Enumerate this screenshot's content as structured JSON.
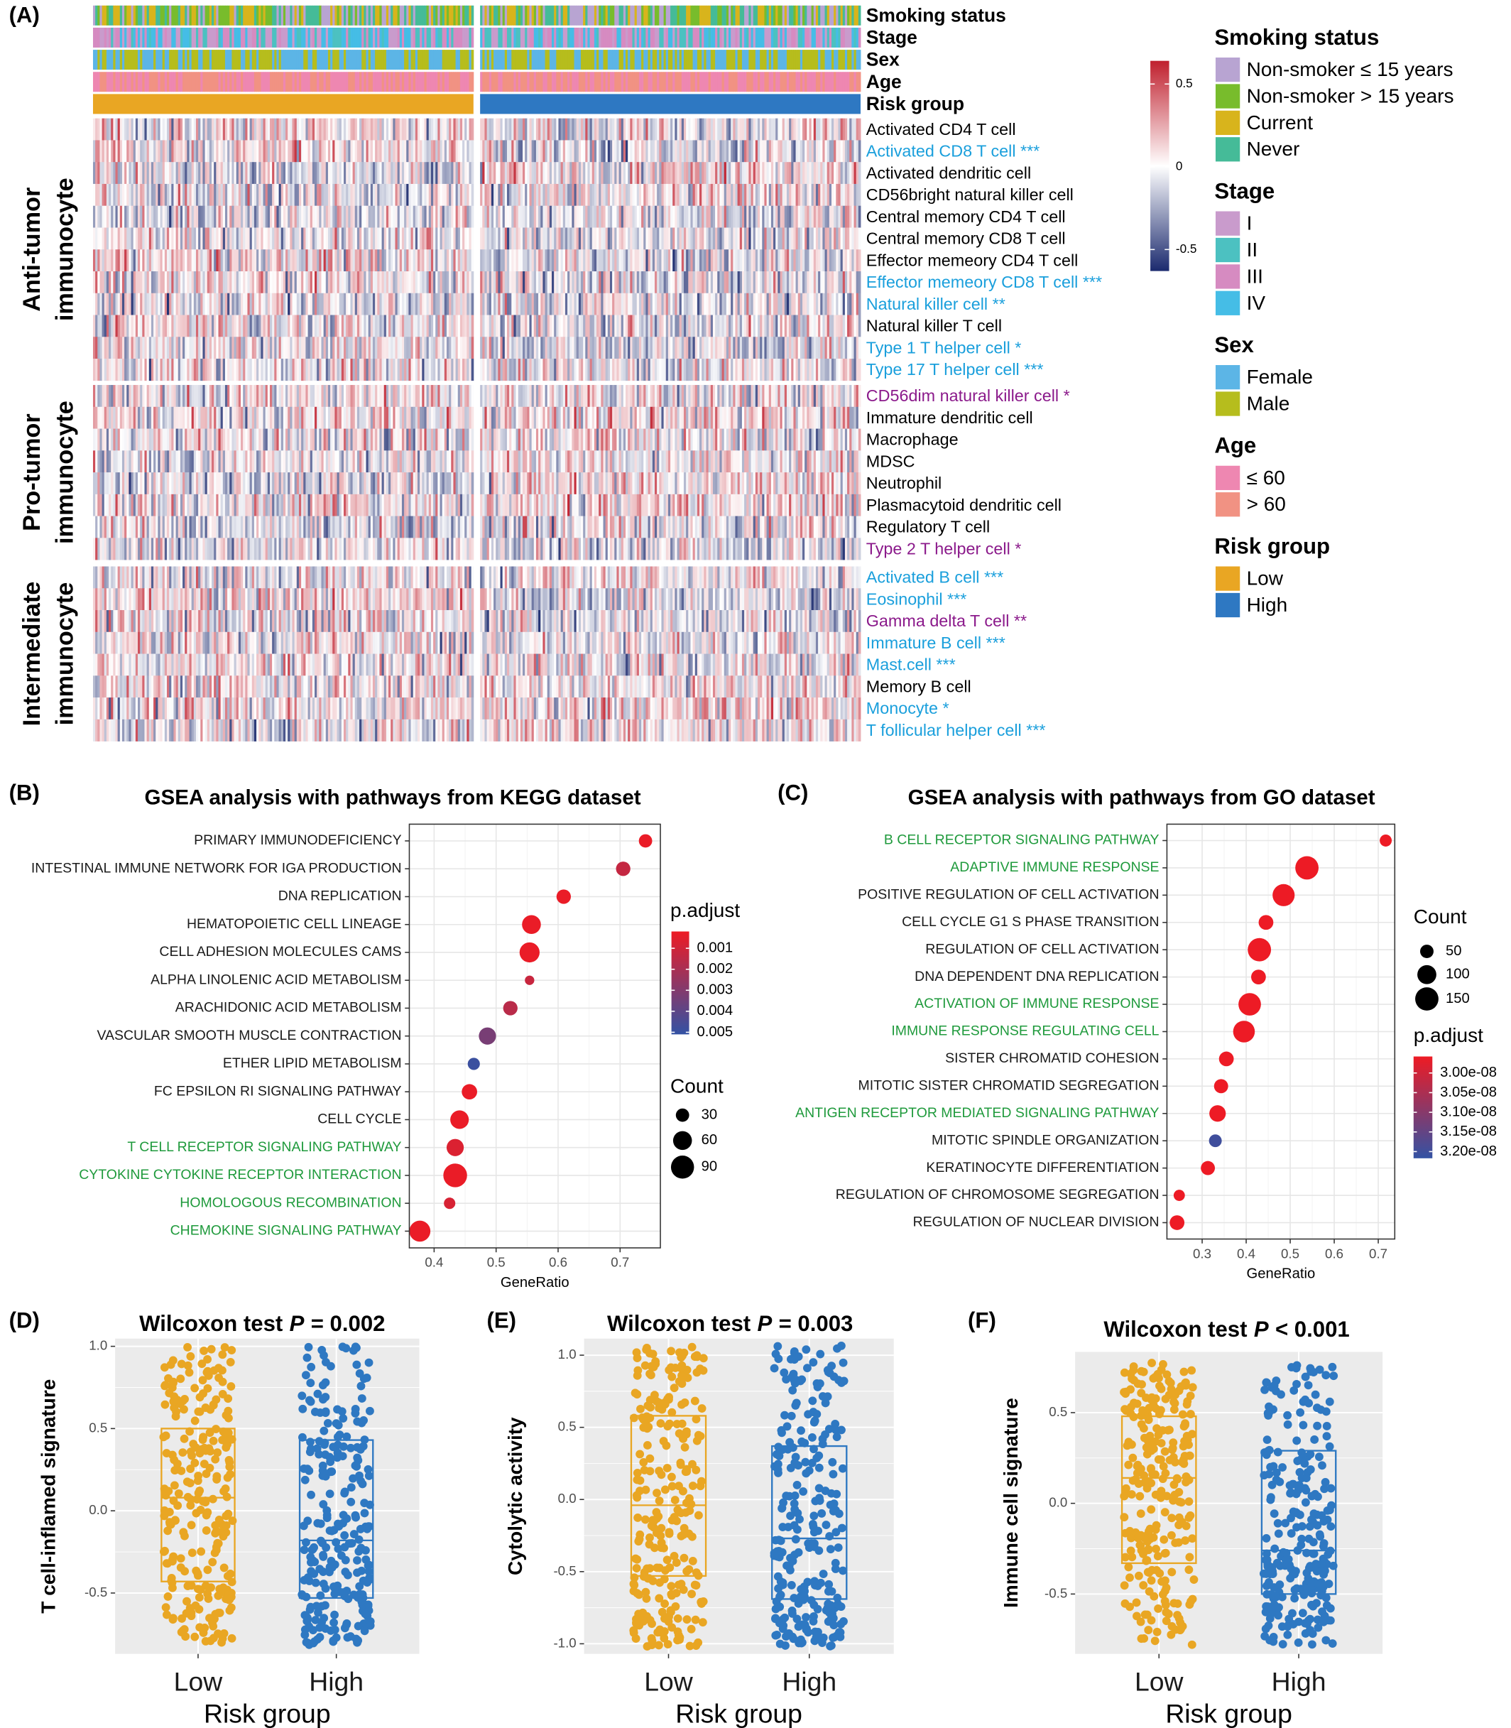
{
  "chart_data": [
    {
      "type": "heatmap",
      "panel": "(A)",
      "tracks": [
        {
          "name": "Smoking status",
          "levels": [
            "Non-smoker ≤ 15 years",
            "Non-smoker > 15 years",
            "Current",
            "Never"
          ],
          "colors": [
            "#b8a4d2",
            "#78bc2c",
            "#d8b41c",
            "#45bb98"
          ]
        },
        {
          "name": "Stage",
          "levels": [
            "I",
            "II",
            "III",
            "IV"
          ],
          "colors": [
            "#c99bcc",
            "#4cc1c1",
            "#d68bc1",
            "#45bde6"
          ]
        },
        {
          "name": "Sex",
          "levels": [
            "Female",
            "Male"
          ],
          "colors": [
            "#5cb5e6",
            "#b6bd1d"
          ]
        },
        {
          "name": "Age",
          "levels": [
            "≤ 60",
            "> 60"
          ],
          "colors": [
            "#ee87b1",
            "#f19283"
          ]
        },
        {
          "name": "Risk group",
          "levels": [
            "Low",
            "High"
          ],
          "colors": [
            "#e9a623",
            "#2e78c2"
          ]
        }
      ],
      "groups": [
        {
          "name": [
            "Anti-tumor",
            "immunocyte"
          ],
          "rows": [
            "Activated CD4 T cell",
            "Activated CD8 T cell ***",
            "Activated dendritic cell",
            "CD56bright natural killer cell",
            "Central memory CD4 T cell",
            "Central memory CD8 T cell",
            "Effector memeory CD4 T cell",
            "Effector memeory CD8 T cell ***",
            "Natural killer cell **",
            "Natural killer T cell",
            "Type 1 T helper cell *",
            "Type 17 T helper cell ***"
          ],
          "row_colors": [
            "#000000",
            "#1a9fdc",
            "#000000",
            "#000000",
            "#000000",
            "#000000",
            "#000000",
            "#1a9fdc",
            "#1a9fdc",
            "#000000",
            "#1a9fdc",
            "#1a9fdc"
          ]
        },
        {
          "name": [
            "Pro-tumor",
            "immunocyte"
          ],
          "rows": [
            "CD56dim natural killer cell *",
            "Immature dendritic cell",
            "Macrophage",
            "MDSC",
            "Neutrophil",
            "Plasmacytoid dendritic cell",
            "Regulatory T cell",
            "Type 2 T helper cell *"
          ],
          "row_colors": [
            "#8b1a8b",
            "#000000",
            "#000000",
            "#000000",
            "#000000",
            "#000000",
            "#000000",
            "#8b1a8b"
          ]
        },
        {
          "name": [
            "Intermediate",
            "immunocyte"
          ],
          "rows": [
            "Activated B cell ***",
            "Eosinophil ***",
            "Gamma delta T cell **",
            "Immature B cell ***",
            "Mast.cell ***",
            "Memory B cell",
            "Monocyte *",
            "T follicular helper cell ***"
          ],
          "row_colors": [
            "#1a9fdc",
            "#1a9fdc",
            "#8b1a8b",
            "#1a9fdc",
            "#1a9fdc",
            "#000000",
            "#1a9fdc",
            "#1a9fdc"
          ]
        }
      ],
      "colorbar": {
        "lim": [
          -0.63,
          0.64
        ],
        "ticks": [
          -0.5,
          0,
          0.5
        ],
        "colors": [
          "#1b2a6e",
          "#ffffff",
          "#c0202e"
        ]
      }
    },
    {
      "type": "dot",
      "panel": "(B)",
      "title": "GSEA analysis with pathways from KEGG dataset",
      "categories": [
        "PRIMARY IMMUNODEFICIENCY",
        "INTESTINAL IMMUNE NETWORK FOR IGA PRODUCTION",
        "DNA REPLICATION",
        "HEMATOPOIETIC CELL LINEAGE",
        "CELL ADHESION MOLECULES CAMS",
        "ALPHA LINOLENIC ACID METABOLISM",
        "ARACHIDONIC ACID METABOLISM",
        "VASCULAR SMOOTH MUSCLE CONTRACTION",
        "ETHER LIPID METABOLISM",
        "FC EPSILON RI SIGNALING PATHWAY",
        "CELL CYCLE",
        "T CELL RECEPTOR SIGNALING PATHWAY",
        "CYTOKINE CYTOKINE RECEPTOR INTERACTION",
        "HOMOLOGOUS RECOMBINATION",
        "CHEMOKINE SIGNALING PATHWAY"
      ],
      "category_colors": [
        "#1a1a1a",
        "#1a1a1a",
        "#1a1a1a",
        "#1a1a1a",
        "#1a1a1a",
        "#1a1a1a",
        "#1a1a1a",
        "#1a1a1a",
        "#1a1a1a",
        "#1a1a1a",
        "#1a1a1a",
        "#1f9a3c",
        "#1f9a3c",
        "#1f9a3c",
        "#1f9a3c"
      ],
      "x": [
        0.741,
        0.705,
        0.609,
        0.557,
        0.554,
        0.554,
        0.523,
        0.486,
        0.464,
        0.457,
        0.441,
        0.434,
        0.434,
        0.425,
        0.377
      ],
      "count": [
        30,
        35,
        35,
        60,
        68,
        15,
        35,
        50,
        25,
        40,
        58,
        50,
        95,
        22,
        75
      ],
      "p_adjust": [
        0.0003,
        0.0013,
        0.0003,
        0.0003,
        0.0003,
        0.0012,
        0.0016,
        0.0033,
        0.0049,
        0.0003,
        0.0003,
        0.0007,
        0.0003,
        0.0008,
        0.0003
      ],
      "xlabel": "GeneRatio",
      "xlim": [
        0.36,
        0.765
      ],
      "xticks": [
        0.4,
        0.5,
        0.6,
        0.7
      ],
      "color_title": "p.adjust",
      "color_ticks": [
        0.001,
        0.002,
        0.003,
        0.004,
        0.005
      ],
      "color_lim": [
        0.0002,
        0.0051
      ],
      "colors": [
        "#ee1b24",
        "#3352a4"
      ],
      "size_title": "Count",
      "size_ticks": [
        30,
        60,
        90
      ]
    },
    {
      "type": "dot",
      "panel": "(C)",
      "title": "GSEA analysis with pathways from GO dataset",
      "categories": [
        "B CELL RECEPTOR SIGNALING PATHWAY",
        "ADAPTIVE IMMUNE RESPONSE",
        "POSITIVE REGULATION OF CELL ACTIVATION",
        "CELL CYCLE G1 S PHASE TRANSITION",
        "REGULATION OF CELL ACTIVATION",
        "DNA DEPENDENT DNA REPLICATION",
        "ACTIVATION OF IMMUNE RESPONSE",
        "IMMUNE RESPONSE REGULATING CELL",
        "SISTER CHROMATID COHESION",
        "MITOTIC SISTER CHROMATID SEGREGATION",
        "ANTIGEN RECEPTOR MEDIATED SIGNALING PATHWAY",
        "MITOTIC SPINDLE ORGANIZATION",
        "KERATINOCYTE DIFFERENTIATION",
        "REGULATION OF CHROMOSOME SEGREGATION",
        "REGULATION OF NUCLEAR DIVISION"
      ],
      "category_colors": [
        "#1f9a3c",
        "#1f9a3c",
        "#1a1a1a",
        "#1a1a1a",
        "#1a1a1a",
        "#1a1a1a",
        "#1f9a3c",
        "#1f9a3c",
        "#1a1a1a",
        "#1a1a1a",
        "#1f9a3c",
        "#1a1a1a",
        "#1a1a1a",
        "#1a1a1a",
        "#1a1a1a"
      ],
      "x": [
        0.717,
        0.538,
        0.485,
        0.445,
        0.43,
        0.428,
        0.408,
        0.395,
        0.355,
        0.343,
        0.335,
        0.33,
        0.313,
        0.248,
        0.243
      ],
      "count": [
        40,
        150,
        135,
        60,
        150,
        60,
        140,
        130,
        60,
        55,
        75,
        45,
        55,
        35,
        60
      ],
      "p_adjust": [
        2.96e-08,
        2.96e-08,
        2.96e-08,
        2.96e-08,
        2.96e-08,
        2.96e-08,
        2.96e-08,
        2.96e-08,
        2.96e-08,
        2.96e-08,
        2.96e-08,
        3.2e-08,
        2.96e-08,
        2.96e-08,
        2.96e-08
      ],
      "xlabel": "GeneRatio",
      "xlim": [
        0.22,
        0.7375
      ],
      "xticks": [
        0.3,
        0.4,
        0.5,
        0.6,
        0.7
      ],
      "color_title": "p.adjust",
      "color_ticks": [
        {
          "value": 3e-08,
          "label": "3.00e-08"
        },
        {
          "value": 3.05e-08,
          "label": "3.05e-08"
        },
        {
          "value": 3.1e-08,
          "label": "3.10e-08"
        },
        {
          "value": 3.15e-08,
          "label": "3.15e-08"
        },
        {
          "value": 3.2e-08,
          "label": "3.20e-08"
        }
      ],
      "color_lim": [
        2.958e-08,
        3.217e-08
      ],
      "colors": [
        "#ee1b24",
        "#3352a4"
      ],
      "size_title": "Count",
      "size_ticks": [
        50,
        100,
        150
      ]
    },
    {
      "type": "box",
      "panel": "(D)",
      "title": [
        "Wilcoxon test",
        "P",
        "= 0.002"
      ],
      "ylabel": "T cell-inflamed signature",
      "xlabel": "Risk group",
      "categories": [
        "Low",
        "High"
      ],
      "colors": [
        "#e9a623",
        "#2e78c2"
      ],
      "q1": [
        -0.43,
        -0.53
      ],
      "median": [
        0.08,
        -0.18
      ],
      "q3": [
        0.5,
        0.43
      ],
      "ylim": [
        -0.87,
        1.047
      ],
      "yticks": [
        -0.5,
        {
          "value": 0,
          "label": "0.0"
        },
        0.5,
        {
          "value": 1,
          "label": "1.0"
        }
      ]
    },
    {
      "type": "box",
      "panel": "(E)",
      "title": [
        "Wilcoxon test",
        "P",
        "= 0.003"
      ],
      "ylabel": "Cytolytic activity",
      "xlabel": "Risk group",
      "categories": [
        "Low",
        "High"
      ],
      "colors": [
        "#e9a623",
        "#2e78c2"
      ],
      "q1": [
        -0.53,
        -0.69
      ],
      "median": [
        -0.04,
        -0.27
      ],
      "q3": [
        0.58,
        0.37
      ],
      "ylim": [
        -1.07,
        1.115
      ],
      "yticks": [
        {
          "value": -1,
          "label": "-1.0"
        },
        -0.5,
        {
          "value": 0,
          "label": "0.0"
        },
        0.5,
        {
          "value": 1,
          "label": "1.0"
        }
      ]
    },
    {
      "type": "box",
      "panel": "(F)",
      "title": [
        "Wilcoxon test",
        "P",
        "< 0.001"
      ],
      "ylabel": "Immune cell signature",
      "xlabel": "Risk group",
      "categories": [
        "Low",
        "High"
      ],
      "colors": [
        "#e9a623",
        "#2e78c2"
      ],
      "q1": [
        -0.33,
        -0.5
      ],
      "median": [
        0.14,
        -0.26
      ],
      "q3": [
        0.48,
        0.29
      ],
      "ylim": [
        -0.83,
        0.835
      ],
      "yticks": [
        -0.5,
        {
          "value": 0,
          "label": "0.0"
        },
        0.5
      ]
    }
  ]
}
